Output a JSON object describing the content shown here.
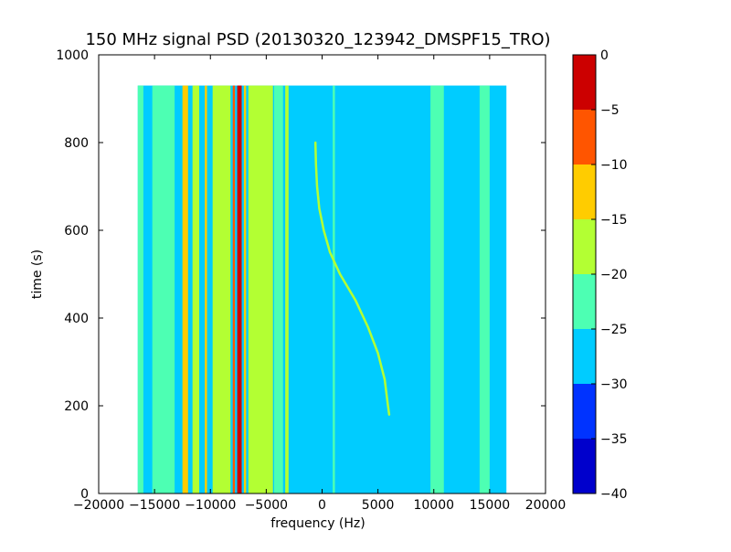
{
  "chart_data": {
    "type": "heatmap",
    "title": "150 MHz signal PSD (20130320_123942_DMSPF15_TRO)",
    "xlabel": "frequency (Hz)",
    "ylabel": "time (s)",
    "xlim": [
      -20000,
      20000
    ],
    "ylim": [
      0,
      1000
    ],
    "x_ticks": [
      -20000,
      -15000,
      -10000,
      -5000,
      0,
      5000,
      10000,
      15000,
      20000
    ],
    "y_ticks": [
      0,
      200,
      400,
      600,
      800,
      1000
    ],
    "data_extent": {
      "x": [
        -16500,
        16500
      ],
      "y": [
        0,
        930
      ]
    },
    "background_level": -28,
    "colorbar": {
      "levels": [
        -40,
        -35,
        -30,
        -25,
        -20,
        -15,
        -10,
        -5,
        0
      ],
      "colors": [
        "#0000cc",
        "#0033ff",
        "#00ccff",
        "#4dffb3",
        "#b3ff33",
        "#ffcc00",
        "#ff5500",
        "#cc0000"
      ]
    },
    "vertical_bands": [
      {
        "x": [
          -16500,
          -16000
        ],
        "level": -24
      },
      {
        "x": [
          -15200,
          -13200
        ],
        "level": -22
      },
      {
        "x": [
          -12500,
          -12000
        ],
        "level": -14
      },
      {
        "x": [
          -11600,
          -11000
        ],
        "level": -20
      },
      {
        "x": [
          -10500,
          -10300
        ],
        "level": -13
      },
      {
        "x": [
          -9800,
          -8200
        ],
        "level": -18
      },
      {
        "x": [
          -8000,
          -7800
        ],
        "level": -7
      },
      {
        "x": [
          -7600,
          -7200
        ],
        "level": -2
      },
      {
        "x": [
          -7000,
          -6800
        ],
        "level": -12
      },
      {
        "x": [
          -6600,
          -4400
        ],
        "level": -20
      },
      {
        "x": [
          -4300,
          -3500
        ],
        "level": -23
      },
      {
        "x": [
          -3300,
          -3000
        ],
        "level": -20
      },
      {
        "x": [
          950,
          1150
        ],
        "level": -23
      },
      {
        "x": [
          9700,
          10900
        ],
        "level": -22
      },
      {
        "x": [
          14100,
          15000
        ],
        "level": -21
      }
    ],
    "doppler_trace": {
      "level": -18,
      "time": [
        180,
        200,
        260,
        320,
        380,
        440,
        500,
        550,
        600,
        650,
        700,
        750,
        800
      ],
      "frequency": [
        6000,
        5900,
        5600,
        5000,
        4100,
        3000,
        1600,
        700,
        150,
        -250,
        -450,
        -550,
        -600
      ]
    }
  }
}
